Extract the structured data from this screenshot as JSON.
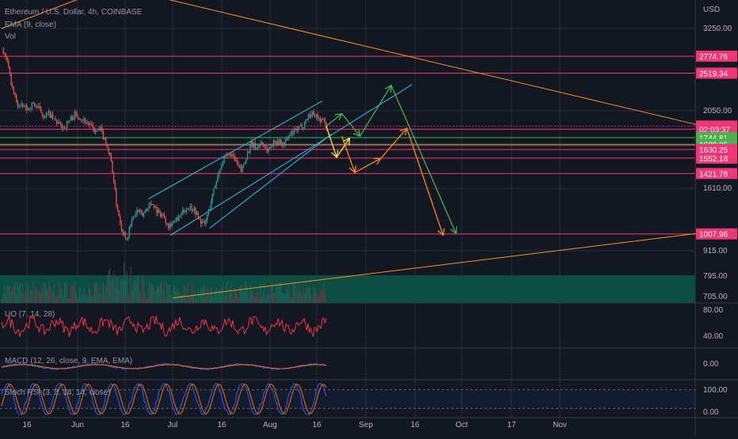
{
  "header": {
    "symbol": "Ethereum / U.S. Dollar, 4h, COINBASE",
    "ema_label": "EMA (9, close)",
    "vol_label": "Vol"
  },
  "colors": {
    "background": "#131722",
    "grid": "#2a2e39",
    "pink_level": "#f23673",
    "green_level": "#4caf50",
    "trend_orange": "#f7931a",
    "channel_cyan": "#26c6da",
    "projection_green": "#4caf50",
    "projection_orange": "#ff8a1f",
    "projection_yellow": "#ffeb3b",
    "candle_up": "#26a69a",
    "candle_down": "#ef5350",
    "volume_fill": "#0c4d43",
    "uo_line": "#f23645",
    "macd_line": "#2962ff",
    "signal_line": "#ff6d00",
    "stoch_k": "#2962ff",
    "stoch_d": "#ff6d00"
  },
  "chart_data": [
    {
      "type": "candlestick",
      "title": "Ethereum / U.S. Dollar, 4h, COINBASE",
      "y_unit": "USD",
      "y_scale": "log",
      "x_tick_labels": [
        "16",
        "Jun",
        "16",
        "Jul",
        "16",
        "Aug",
        "16",
        "Sep",
        "16",
        "Oct",
        "17",
        "Nov"
      ],
      "y_tick_labels": [
        "3250.00",
        "2050.00",
        "1610.00",
        "1010.00",
        "915.00",
        "795.00",
        "705.00"
      ],
      "price_levels": [
        {
          "label": "2774.76",
          "value": 2774.76,
          "color": "#f23673"
        },
        {
          "label": "2519.34",
          "value": 2519.34,
          "color": "#f23673"
        },
        {
          "label": "1863.46",
          "value": 1863.46,
          "color": "#f23673"
        },
        {
          "label": "02:03:37",
          "value": 1830,
          "color": "#f23673"
        },
        {
          "label": "1744.81",
          "value": 1744.81,
          "color": "#4caf50"
        },
        {
          "label": "1669.32",
          "value": 1669.32,
          "color": "#f23673"
        },
        {
          "label": "1680.05",
          "value": 1680.05,
          "color": "#4caf50"
        },
        {
          "label": "1630.25",
          "value": 1630.25,
          "color": "#f23673"
        },
        {
          "label": "1552.18",
          "value": 1552.18,
          "color": "#f23673"
        },
        {
          "label": "1421.78",
          "value": 1421.78,
          "color": "#f23673"
        },
        {
          "label": "1007.96",
          "value": 1007.96,
          "color": "#f23673"
        }
      ],
      "price_path": [
        [
          0,
          2900
        ],
        [
          4,
          2680
        ],
        [
          8,
          2300
        ],
        [
          12,
          2100
        ],
        [
          16,
          2080
        ],
        [
          20,
          2050
        ],
        [
          24,
          2120
        ],
        [
          28,
          2060
        ],
        [
          32,
          1980
        ],
        [
          36,
          2000
        ],
        [
          40,
          1930
        ],
        [
          44,
          1880
        ],
        [
          48,
          1850
        ],
        [
          52,
          1930
        ],
        [
          56,
          1990
        ],
        [
          60,
          1960
        ],
        [
          64,
          1920
        ],
        [
          68,
          1870
        ],
        [
          72,
          1800
        ],
        [
          76,
          1820
        ],
        [
          80,
          1700
        ],
        [
          84,
          1520
        ],
        [
          88,
          1200
        ],
        [
          92,
          1040
        ],
        [
          96,
          980
        ],
        [
          100,
          1090
        ],
        [
          104,
          1150
        ],
        [
          108,
          1120
        ],
        [
          112,
          1180
        ],
        [
          116,
          1200
        ],
        [
          120,
          1140
        ],
        [
          124,
          1120
        ],
        [
          128,
          1060
        ],
        [
          132,
          1080
        ],
        [
          136,
          1100
        ],
        [
          140,
          1150
        ],
        [
          144,
          1180
        ],
        [
          148,
          1160
        ],
        [
          152,
          1090
        ],
        [
          156,
          1060
        ],
        [
          160,
          1180
        ],
        [
          164,
          1330
        ],
        [
          168,
          1480
        ],
        [
          172,
          1560
        ],
        [
          176,
          1590
        ],
        [
          180,
          1520
        ],
        [
          184,
          1440
        ],
        [
          188,
          1570
        ],
        [
          192,
          1680
        ],
        [
          196,
          1650
        ],
        [
          200,
          1700
        ],
        [
          204,
          1620
        ],
        [
          208,
          1680
        ],
        [
          212,
          1720
        ],
        [
          216,
          1680
        ],
        [
          220,
          1740
        ],
        [
          224,
          1800
        ],
        [
          228,
          1830
        ],
        [
          232,
          1880
        ],
        [
          236,
          1980
        ],
        [
          240,
          2010
        ],
        [
          244,
          1940
        ],
        [
          248,
          1910
        ],
        [
          250,
          1863.46
        ]
      ],
      "projections": [
        {
          "color": "#4caf50",
          "points": [
            [
              250,
              1863.46
            ],
            [
              262,
              2000
            ],
            [
              276,
              1760
            ],
            [
              300,
              2350
            ],
            [
              350,
              1010
            ]
          ]
        },
        {
          "color": "#ff8a1f",
          "points": [
            [
              262,
              1760
            ],
            [
              272,
              1430
            ],
            [
              292,
              1550
            ],
            [
              312,
              1840
            ],
            [
              340,
              1000
            ]
          ]
        },
        {
          "color": "#ffeb3b",
          "points": [
            [
              250,
              1863.46
            ],
            [
              258,
              1560
            ],
            [
              268,
              1740
            ]
          ]
        }
      ]
    },
    {
      "type": "line",
      "title": "UO (7, 14, 28)",
      "y_tick_labels": [
        "80.00",
        "40.00"
      ],
      "ylim": [
        20,
        90
      ]
    },
    {
      "type": "line",
      "title": "MACD (12, 26, close, 9, EMA, EMA)",
      "y_tick_labels": [
        "0.00"
      ]
    },
    {
      "type": "line",
      "title": "Stoch RSI (3, 3, 14, 14, close)",
      "y_tick_labels": [
        "100.00",
        "0.00"
      ],
      "ylim": [
        -10,
        110
      ]
    }
  ]
}
